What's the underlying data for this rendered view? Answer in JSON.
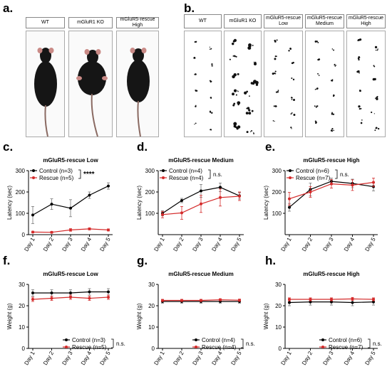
{
  "panels": {
    "a": {
      "letter": "a.",
      "labels": [
        "WT",
        "mGluR1 KO",
        "mGluR5-rescue\nHigh"
      ]
    },
    "b": {
      "letter": "b.",
      "labels": [
        "WT",
        "mGluR1 KO",
        "mGluR5-rescue\nLow",
        "mGluR5-rescue\nMedium",
        "mGluR5-rescue\nHigh"
      ]
    }
  },
  "colors": {
    "control": "#000000",
    "rescue": "#d42a2a",
    "mouse_body": "#151515",
    "mouse_ear": "#c98a86"
  },
  "chart_data": [
    {
      "id": "c",
      "letter": "c.",
      "type": "line",
      "title": "mGluR5-rescue Low",
      "xlabel": "",
      "ylabel": "Latency (sec)",
      "categories": [
        "Day 1",
        "Day 2",
        "Day 3",
        "Day 4",
        "Day 5"
      ],
      "ylim": [
        0,
        300
      ],
      "yticks": [
        0,
        100,
        200,
        300
      ],
      "series": [
        {
          "name": "Control",
          "legend": "Control (n=3)",
          "color": "#000000",
          "values": [
            92,
            143,
            124,
            185,
            228
          ],
          "errors": [
            40,
            25,
            40,
            15,
            15
          ]
        },
        {
          "name": "Rescue",
          "legend": "Rescue (n=5)",
          "color": "#d42a2a",
          "values": [
            12,
            11,
            22,
            27,
            22
          ],
          "errors": [
            4,
            4,
            6,
            5,
            5
          ]
        }
      ],
      "significance": "****"
    },
    {
      "id": "d",
      "letter": "d.",
      "type": "line",
      "title": "mGluR5-rescue Medium",
      "xlabel": "",
      "ylabel": "Latency (sec)",
      "categories": [
        "Day 1",
        "Day 2",
        "Day 3",
        "Day 4",
        "Day 5"
      ],
      "ylim": [
        0,
        300
      ],
      "yticks": [
        100,
        200,
        300
      ],
      "series": [
        {
          "name": "Control",
          "legend": "Control (n=4)",
          "color": "#000000",
          "values": [
            100,
            160,
            205,
            222,
            182
          ],
          "errors": [
            12,
            10,
            30,
            20,
            15
          ]
        },
        {
          "name": "Rescue",
          "legend": "Rescue (n=4)",
          "color": "#d42a2a",
          "values": [
            94,
            102,
            144,
            174,
            180
          ],
          "errors": [
            15,
            30,
            40,
            40,
            20
          ]
        }
      ],
      "significance": "n.s."
    },
    {
      "id": "e",
      "letter": "e.",
      "type": "line",
      "title": "mGluR5-rescue High",
      "xlabel": "",
      "ylabel": "Latency (sec)",
      "categories": [
        "Day 1",
        "Day 2",
        "Day 3",
        "Day 4",
        "Day 5"
      ],
      "ylim": [
        0,
        300
      ],
      "yticks": [
        100,
        200,
        300
      ],
      "series": [
        {
          "name": "Control",
          "legend": "Control (n=6)",
          "color": "#000000",
          "values": [
            128,
            212,
            250,
            240,
            225
          ],
          "errors": [
            18,
            30,
            15,
            20,
            20
          ]
        },
        {
          "name": "Rescue",
          "legend": "Rescue (n=7)",
          "color": "#d42a2a",
          "values": [
            168,
            200,
            238,
            232,
            245
          ],
          "errors": [
            30,
            25,
            20,
            25,
            20
          ]
        }
      ],
      "significance": "n.s."
    },
    {
      "id": "f",
      "letter": "f.",
      "type": "line",
      "title": "mGluR5-rescue Low",
      "xlabel": "",
      "ylabel": "Weight (g)",
      "categories": [
        "Day 1",
        "Day 2",
        "Day 3",
        "Day 4",
        "Day 5"
      ],
      "ylim": [
        0,
        30
      ],
      "yticks": [
        0,
        10,
        20,
        30
      ],
      "series": [
        {
          "name": "Control",
          "legend": "Control (n=3)",
          "color": "#000000",
          "values": [
            26,
            26,
            26,
            26.5,
            26.5
          ],
          "errors": [
            1.5,
            1.5,
            1.5,
            1.5,
            1.5
          ]
        },
        {
          "name": "Rescue",
          "legend": "Rescue (n=5)",
          "color": "#d42a2a",
          "values": [
            23,
            23.5,
            24,
            23.5,
            24
          ],
          "errors": [
            1,
            1,
            1,
            1,
            1
          ]
        }
      ],
      "significance": "n.s."
    },
    {
      "id": "g",
      "letter": "g.",
      "type": "line",
      "title": "mGluR5-rescue Medium",
      "xlabel": "",
      "ylabel": "Weight (g)",
      "categories": [
        "Day 1",
        "Day 2",
        "Day 3",
        "Day 4",
        "Day 5"
      ],
      "ylim": [
        0,
        30
      ],
      "yticks": [
        0,
        10,
        20,
        30
      ],
      "series": [
        {
          "name": "Control",
          "legend": "Control (n=4)",
          "color": "#000000",
          "values": [
            22,
            22,
            22,
            22,
            22
          ],
          "errors": [
            0.8,
            0.8,
            0.8,
            0.8,
            0.8
          ]
        },
        {
          "name": "Rescue",
          "legend": "Rescue (n=4)",
          "color": "#d42a2a",
          "values": [
            22.5,
            22.5,
            22.5,
            22.8,
            22.6
          ],
          "errors": [
            0.5,
            0.5,
            0.5,
            0.5,
            0.5
          ]
        }
      ],
      "significance": "n.s."
    },
    {
      "id": "h",
      "letter": "h.",
      "type": "line",
      "title": "mGluR5-rescue High",
      "xlabel": "",
      "ylabel": "Weight (g)",
      "categories": [
        "Day 1",
        "Day 2",
        "Day 3",
        "Day 4",
        "Day 5"
      ],
      "ylim": [
        0,
        30
      ],
      "yticks": [
        0,
        10,
        20,
        30
      ],
      "series": [
        {
          "name": "Control",
          "legend": "Control (n=6)",
          "color": "#000000",
          "values": [
            21.5,
            21.8,
            21.8,
            21.5,
            21.8
          ],
          "errors": [
            1.5,
            1.5,
            1.5,
            1.5,
            1.5
          ]
        },
        {
          "name": "Rescue",
          "legend": "Rescue (n=7)",
          "color": "#d42a2a",
          "values": [
            23,
            23,
            23,
            23.2,
            23
          ],
          "errors": [
            0.7,
            0.7,
            0.7,
            0.7,
            0.7
          ]
        }
      ],
      "significance": "n.s."
    }
  ]
}
